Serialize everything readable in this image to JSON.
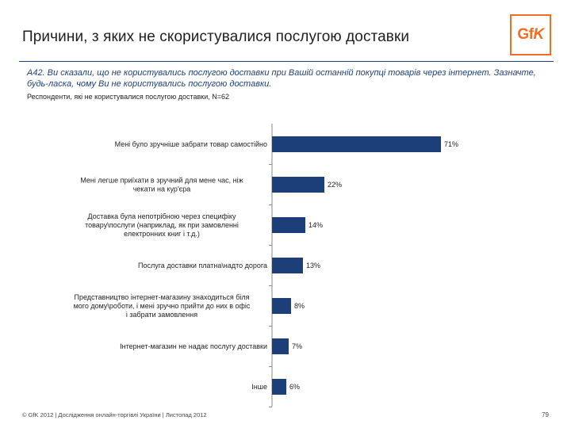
{
  "header": {
    "title": "Причини, з яких не скористувалися послугою доставки",
    "logo_text": "GfK"
  },
  "question": {
    "text": "A42. Ви сказали, що не користувались послугою доставки при Вашій останній покупці товарів через інтернет. Зазначте, будь-ласка, чому Ви не користувались послугою доставки.",
    "respondents": "Респонденти, які не користувалися послугою доставки, N=62"
  },
  "chart_data": {
    "type": "bar",
    "orientation": "horizontal",
    "unit": "%",
    "categories": [
      [
        "Мені було зручніше забрати товар самостійно"
      ],
      [
        "Мені легше приїхати в зручний для мене час, ніж",
        "чекати на кур'єра"
      ],
      [
        "Доставка була непотрібною через специфіку",
        "товару\\послуги (наприклад, як при замовленні",
        "електронних книг і т.д.)"
      ],
      [
        "Послуга доставки платна\\надто дорога"
      ],
      [
        "Представництво інтернет-магазину знаходиться біля",
        "мого дому\\роботи, і мені зручно прийти до них в офіс",
        "і забрати замовлення"
      ],
      [
        "Інтернет-магазин не надає послугу доставки"
      ],
      [
        "Інше"
      ]
    ],
    "values": [
      71,
      22,
      14,
      13,
      8,
      7,
      6
    ],
    "value_labels": [
      "71%",
      "22%",
      "14%",
      "13%",
      "8%",
      "7%",
      "6%"
    ],
    "xlim": [
      0,
      100
    ],
    "bar_color": "#1c3f7a"
  },
  "footer": {
    "copyright": "© GfK 2012 | Дослідження онлайн-торгівлі України | Листопад 2012",
    "page_number": "79"
  }
}
